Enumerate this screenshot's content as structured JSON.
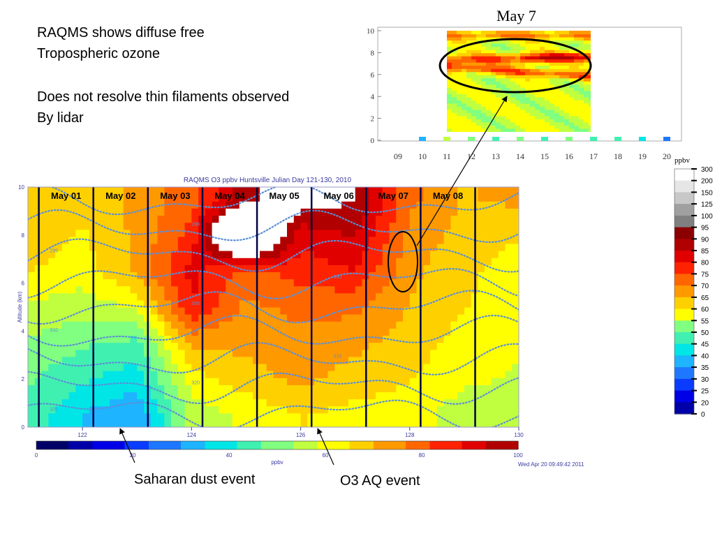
{
  "notes": {
    "line1": "RAQMS shows diffuse free",
    "line2": "Tropospheric ozone",
    "line3": "Does not resolve thin filaments observed",
    "line4": "By lidar"
  },
  "annotations": {
    "dust": "Saharan dust event",
    "aq": "O3 AQ event"
  },
  "colors": {
    "scale": [
      "#000066",
      "#0000a8",
      "#0000e6",
      "#0a3cff",
      "#1e78ff",
      "#1eb4ff",
      "#00e6e6",
      "#40f0b0",
      "#80ff80",
      "#c0ff40",
      "#ffff00",
      "#ffd000",
      "#ff9900",
      "#ff6600",
      "#ff2200",
      "#e00000",
      "#b00000",
      "#8b0000"
    ],
    "sat": [
      "#c00000",
      "#606060",
      "#808080",
      "#a0a0a0",
      "#c8c8c8",
      "#e6e6e6",
      "#ffffff"
    ],
    "contour": "#5b8fd6",
    "dayline": "#000044"
  },
  "chart_data": [
    {
      "type": "heatmap",
      "title": "RAQMS O3 ppbv Huntsville Julian Day 121-130, 2010",
      "xlabel": "",
      "ylabel": "Altitude (km)",
      "xlim": [
        121,
        130
      ],
      "ylim": [
        0,
        10
      ],
      "x_ticks": [
        122,
        124,
        126,
        128,
        130
      ],
      "y_ticks": [
        0,
        2,
        4,
        6,
        8,
        10
      ],
      "day_labels": [
        "May 01",
        "May 02",
        "May 03",
        "May 04",
        "May 05",
        "May 06",
        "May 07",
        "May 08"
      ],
      "day_lines_x": [
        121.2,
        122.2,
        123.2,
        124.2,
        125.2,
        126.2,
        127.2,
        128.2,
        129.2
      ],
      "contour_levels": [
        "325",
        "320",
        "315",
        "310",
        "305",
        "300",
        "299",
        "298"
      ],
      "colorbar": {
        "label": "ppbv",
        "min": 0,
        "max": 100,
        "ticks": [
          0,
          20,
          40,
          60,
          80,
          100
        ]
      },
      "timestamp": "Wed Apr 20 09:49:42 2011",
      "ozone_grid": {
        "altitudes_km": [
          0.5,
          2,
          3.5,
          5,
          6.5,
          8,
          9.5
        ],
        "days": [
          121,
          122,
          123,
          124,
          125,
          126,
          127,
          128,
          129,
          130
        ],
        "values_ppbv": [
          [
            45,
            35,
            30,
            55,
            60,
            65,
            62,
            62,
            55,
            55
          ],
          [
            48,
            42,
            38,
            62,
            68,
            72,
            68,
            65,
            60,
            58
          ],
          [
            52,
            48,
            45,
            72,
            72,
            75,
            72,
            68,
            62,
            60
          ],
          [
            58,
            55,
            60,
            88,
            75,
            78,
            78,
            70,
            65,
            62
          ],
          [
            65,
            62,
            72,
            90,
            80,
            85,
            88,
            72,
            66,
            62
          ],
          [
            68,
            64,
            72,
            85,
            130,
            90,
            95,
            75,
            68,
            65
          ],
          [
            70,
            66,
            72,
            80,
            98,
            105,
            100,
            78,
            70,
            72
          ]
        ]
      }
    },
    {
      "type": "heatmap",
      "title": "May 7",
      "xlabel": "",
      "ylabel": "",
      "xlim": [
        9,
        20
      ],
      "ylim": [
        0,
        10
      ],
      "x_ticks": [
        9,
        10,
        11,
        12,
        13,
        14,
        15,
        16,
        17,
        18,
        19,
        20
      ],
      "y_ticks": [
        0,
        2,
        4,
        6,
        8,
        10
      ],
      "colorbar": {
        "label": "ppbv",
        "ticks": [
          "300",
          "200",
          "150",
          "125",
          "100",
          "95",
          "90",
          "85",
          "80",
          "75",
          "70",
          "65",
          "60",
          "55",
          "50",
          "45",
          "40",
          "35",
          "30",
          "25",
          "20",
          "0"
        ]
      },
      "lidar_band_rows": [
        {
          "alt_km": 9.5,
          "ppbv": 80
        },
        {
          "alt_km": 7.5,
          "ppbv": 85
        },
        {
          "alt_km": 6.5,
          "ppbv": 80
        },
        {
          "alt_km": 4.5,
          "ppbv": 55
        },
        {
          "alt_km": 2.5,
          "ppbv": 62
        },
        {
          "alt_km": 1.0,
          "ppbv": 58
        }
      ]
    }
  ]
}
